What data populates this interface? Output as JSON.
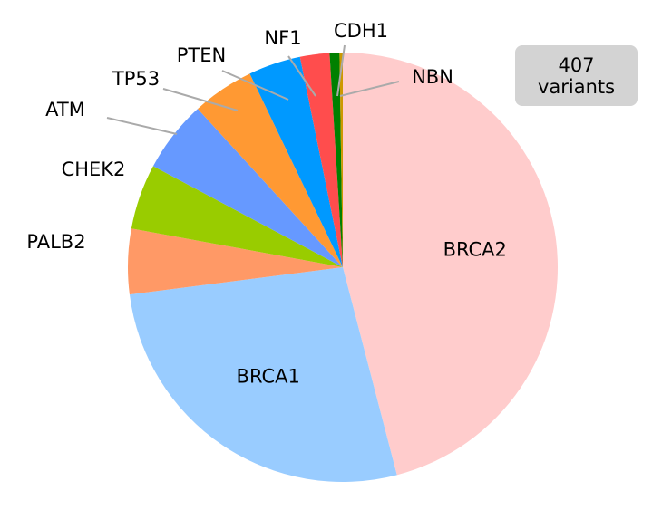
{
  "chart_data": {
    "type": "pie",
    "annotation": "407 variants",
    "categories": [
      "BRCA2",
      "BRCA1",
      "PALB2",
      "CHEK2",
      "ATM",
      "TP53",
      "PTEN",
      "NF1",
      "CDH1",
      "NBN"
    ],
    "values": [
      187,
      110,
      20,
      20,
      22,
      19,
      16,
      9,
      3,
      1
    ],
    "colors": [
      "#ffcccc",
      "#99ccff",
      "#ff9966",
      "#99cc00",
      "#6699ff",
      "#ff9933",
      "#0099ff",
      "#ff4d4d",
      "#008000",
      "#cc9900"
    ]
  }
}
